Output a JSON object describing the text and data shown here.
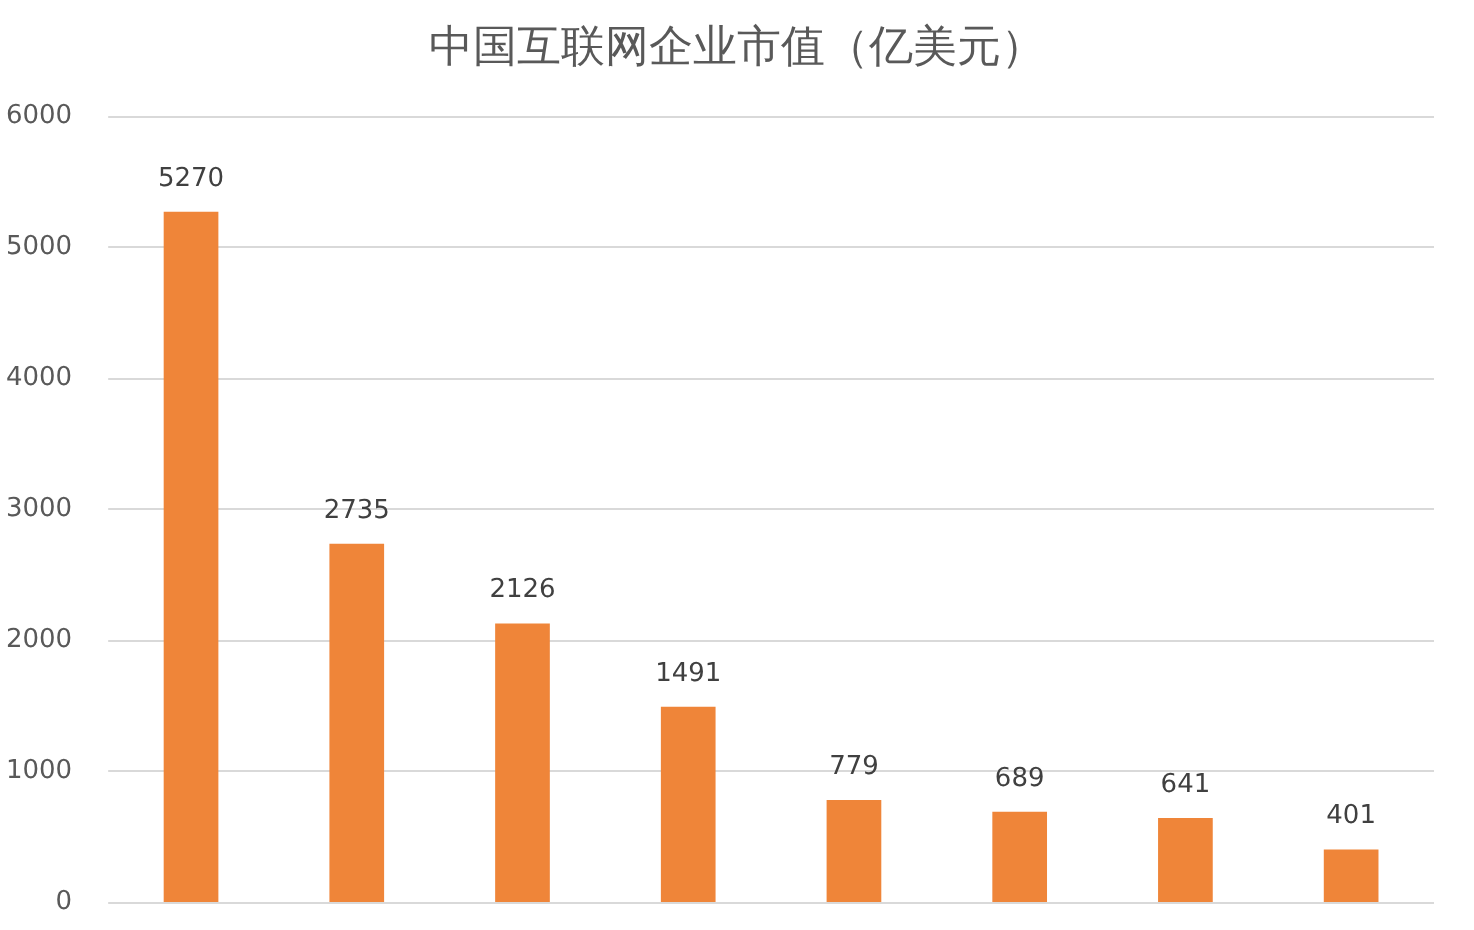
{
  "chart_data": {
    "type": "bar",
    "title": "中国互联网企业市值（亿美元）",
    "categories": [
      null,
      null,
      null,
      null,
      null,
      null,
      null,
      null
    ],
    "values": [
      5270,
      2735,
      2126,
      1491,
      779,
      689,
      641,
      401
    ],
    "color": "#ef8539",
    "ylim": [
      0,
      6000
    ],
    "yticks": [
      0,
      1000,
      2000,
      3000,
      4000,
      5000,
      6000
    ],
    "grid": "y",
    "data_labels": true
  }
}
